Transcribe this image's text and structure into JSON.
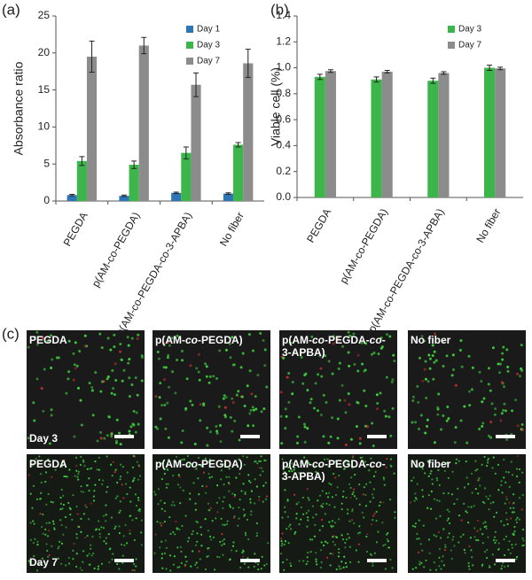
{
  "chart_data": [
    {
      "type": "bar",
      "panel_label": "(a)",
      "ylabel": "Absorbance ratio",
      "categories": [
        "PEGDA",
        "p(AM-co-PEGDA)",
        "p(AM-co-PEGDA-co-3-APBA)",
        "No fiber"
      ],
      "series": [
        {
          "name": "Day 1",
          "color": "#2e75b6",
          "values": [
            0.8,
            0.7,
            1.1,
            1.0
          ],
          "errors": [
            0.1,
            0.1,
            0.1,
            0.1
          ]
        },
        {
          "name": "Day 3",
          "color": "#3cb54a",
          "values": [
            5.4,
            4.9,
            6.5,
            7.6
          ],
          "errors": [
            0.6,
            0.5,
            0.8,
            0.3
          ]
        },
        {
          "name": "Day 7",
          "color": "#8c8c8c",
          "values": [
            19.5,
            21.0,
            15.7,
            18.6
          ],
          "errors": [
            2.1,
            1.1,
            1.6,
            1.9
          ]
        }
      ],
      "ylim": [
        0,
        25
      ],
      "yticks": [
        0,
        5,
        10,
        15,
        20,
        25
      ],
      "grid": false,
      "legend": "upper right"
    },
    {
      "type": "bar",
      "panel_label": "(b)",
      "ylabel": "Viable cell (%)",
      "categories": [
        "PEGDA",
        "p(AM-co-PEGDA)",
        "p(AM-co-PEGDA-co-3-APBA)",
        "No fiber"
      ],
      "series": [
        {
          "name": "Day 3",
          "color": "#3cb54a",
          "values": [
            0.93,
            0.91,
            0.9,
            1.0
          ],
          "errors": [
            0.02,
            0.02,
            0.02,
            0.02
          ]
        },
        {
          "name": "Day 7",
          "color": "#8c8c8c",
          "values": [
            0.975,
            0.97,
            0.96,
            0.995
          ],
          "errors": [
            0.01,
            0.01,
            0.01,
            0.01
          ]
        }
      ],
      "ylim": [
        0,
        1.4
      ],
      "yticks": [
        {
          "value": 0,
          "label": "0.0"
        },
        {
          "value": 0.2,
          "label": "0.2"
        },
        {
          "value": 0.4,
          "label": "0.4"
        },
        {
          "value": 0.6,
          "label": "0.6"
        },
        {
          "value": 0.8,
          "label": "0.8"
        },
        {
          "value": 1,
          "label": "1.0"
        },
        {
          "value": 1.2,
          "label": "1.2"
        },
        {
          "value": 1.4,
          "label": "1.4"
        }
      ],
      "grid": false,
      "legend": "upper right"
    }
  ],
  "micrographs": {
    "panel_label": "(c)",
    "rows": [
      {
        "day": "Day 3",
        "panels": [
          {
            "title_lines": [
              [
                "PEGDA"
              ]
            ]
          },
          {
            "title_lines": [
              [
                "p(AM-",
                "co",
                "-PEGDA)"
              ]
            ]
          },
          {
            "title_lines": [
              [
                "p(AM-",
                "co",
                "-PEGDA-",
                "co",
                "-"
              ],
              [
                "3-APBA)"
              ]
            ]
          },
          {
            "title_lines": [
              [
                "No fiber"
              ]
            ]
          }
        ]
      },
      {
        "day": "Day 7",
        "panels": [
          {
            "title_lines": [
              [
                "PEGDA"
              ]
            ]
          },
          {
            "title_lines": [
              [
                "p(AM-",
                "co",
                "-PEGDA)"
              ]
            ]
          },
          {
            "title_lines": [
              [
                "p(AM-",
                "co",
                "-PEGDA-",
                "co",
                "-"
              ],
              [
                "3-APBA)"
              ]
            ]
          },
          {
            "title_lines": [
              [
                "No fiber"
              ]
            ]
          }
        ]
      }
    ]
  }
}
